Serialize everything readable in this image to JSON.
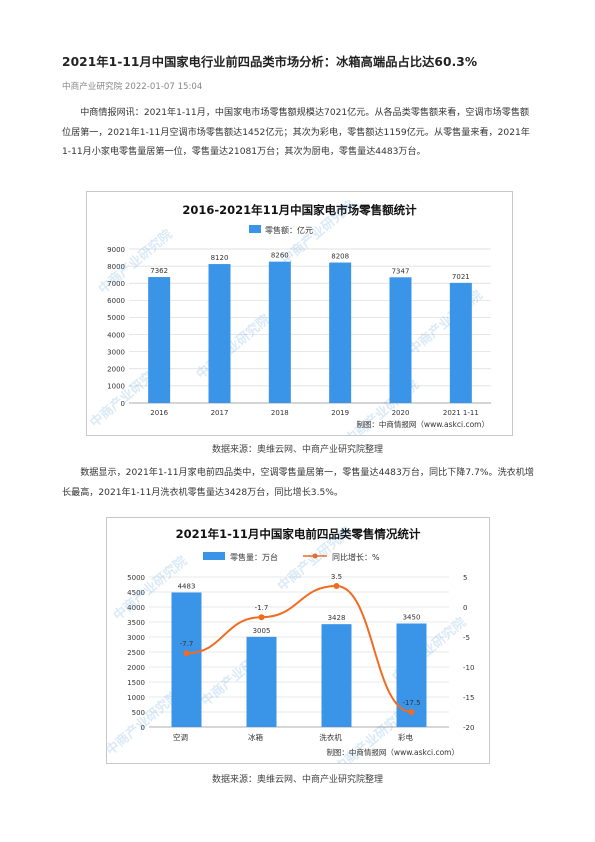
{
  "article": {
    "title": "2021年1-11月中国家电行业前四品类市场分析：冰箱高端品占比达60.3%",
    "source": "中商产业研究院",
    "date": "2022-01-07 15:04",
    "paragraph1": "中商情报网讯：2021年1-11月，中国家电市场零售额规模达7021亿元。从各品类零售额来看，空调市场零售额位居第一，2021年1-11月空调市场零售额达1452亿元；其次为彩电，零售额达1159亿元。从零售量来看，2021年1-11月小家电零售量居第一位，零售量达21081万台；其次为厨电，零售量达4483万台。",
    "caption1": "数据来源：奥维云网、中商产业研究院整理",
    "paragraph2": "数据显示，2021年1-11月家电前四品类中，空调零售量居第一，零售量达4483万台，同比下降7.7%。洗衣机增长最高，2021年1-11月洗衣机零售量达3428万台，同比增长3.5%。",
    "caption2": "数据来源：奥维云网、中商产业研究院整理"
  },
  "watermark": "中商产业研究院",
  "chart_data": [
    {
      "type": "bar",
      "title": "2016-2021年11月中国家电市场零售额统计",
      "categories": [
        "2016",
        "2017",
        "2018",
        "2019",
        "2020",
        "2021 1-11"
      ],
      "series": [
        {
          "name": "零售额：亿元",
          "values": [
            7362,
            8120,
            8260,
            8208,
            7347,
            7021
          ]
        }
      ],
      "ylim": [
        0,
        9000
      ],
      "yticks": [
        0,
        1000,
        2000,
        3000,
        4000,
        5000,
        6000,
        7000,
        8000,
        9000
      ],
      "grid": true,
      "legend": "top",
      "color": "#3a95e8",
      "credit": "制图：中商情报网（www.askci.com）"
    },
    {
      "type": "bar",
      "title": "2021年1-11月中国家电前四品类零售情况统计",
      "categories": [
        "空调",
        "冰箱",
        "洗衣机",
        "彩电"
      ],
      "series": [
        {
          "name": "零售量：万台",
          "type": "bar",
          "axis": "left",
          "values": [
            4483,
            3005,
            3428,
            3450
          ]
        },
        {
          "name": "同比增长：%",
          "type": "line",
          "axis": "right",
          "values": [
            -7.7,
            -1.7,
            3.5,
            -17.5
          ]
        }
      ],
      "ylim": [
        0,
        5000
      ],
      "yticks": [
        0,
        500,
        1000,
        1500,
        2000,
        2500,
        3000,
        3500,
        4000,
        4500,
        5000
      ],
      "y2lim": [
        -20,
        5
      ],
      "y2ticks": [
        5,
        0,
        -5,
        -10,
        -15,
        -20
      ],
      "grid": true,
      "legend": "top",
      "bar_color": "#3a95e8",
      "line_color": "#f26b21",
      "credit": "制图：中商情报网（www.askci.com）"
    }
  ]
}
